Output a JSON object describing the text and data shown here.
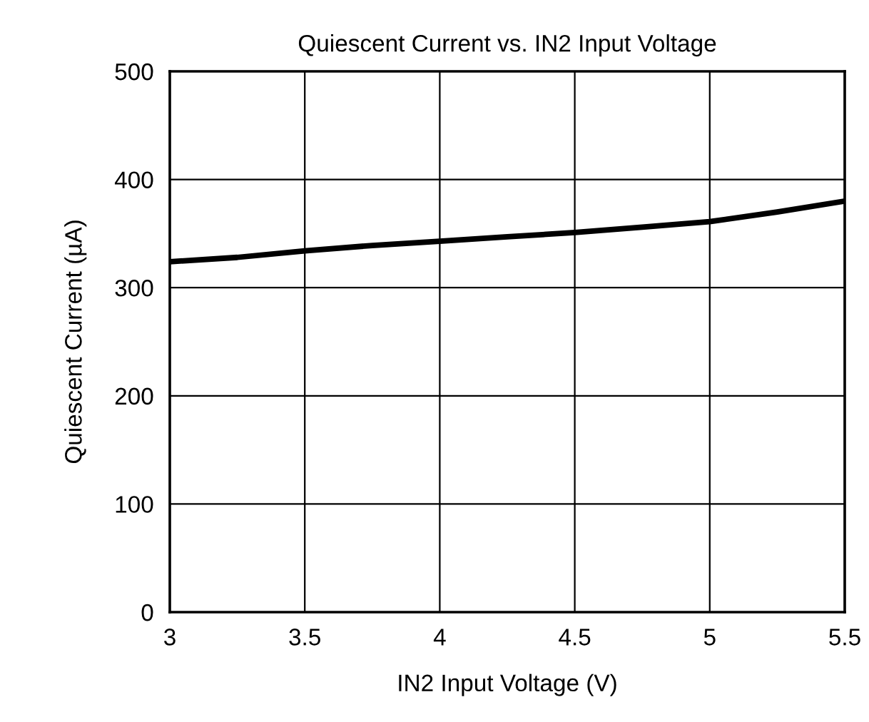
{
  "chart_data": {
    "type": "line",
    "title": "Quiescent Current vs. IN2 Input Voltage",
    "xlabel": "IN2 Input Voltage (V)",
    "ylabel": "Quiescent Current (µA)",
    "x": [
      3,
      3.25,
      3.5,
      3.75,
      4,
      4.25,
      4.5,
      4.75,
      5,
      5.25,
      5.5
    ],
    "series": [
      {
        "color": "#000000",
        "values": [
          324,
          328,
          334,
          339,
          343,
          347,
          351,
          356,
          361,
          370,
          380
        ]
      }
    ],
    "xlim": [
      3,
      5.5
    ],
    "ylim": [
      0,
      500
    ],
    "xticks": [
      3,
      3.5,
      4,
      4.5,
      5,
      5.5
    ],
    "yticks": [
      0,
      100,
      200,
      300,
      400,
      500
    ],
    "grid": true,
    "legend": false,
    "marker": "none",
    "line_style": "solid"
  }
}
